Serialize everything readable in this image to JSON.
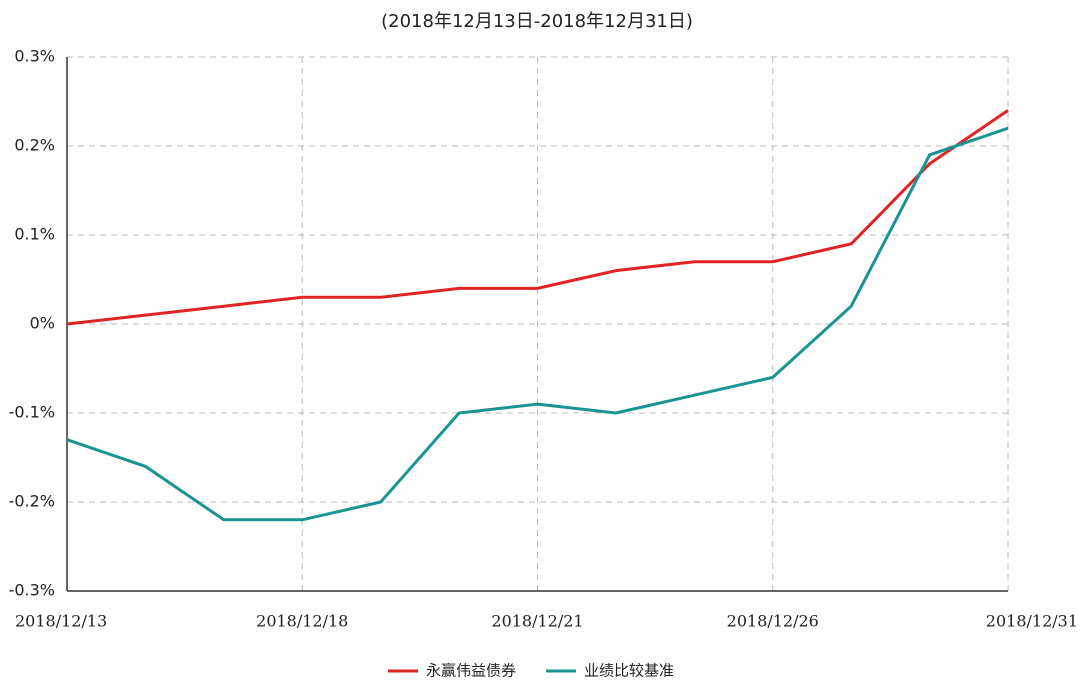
{
  "chart_data": {
    "type": "line",
    "title": "(2018年12月13日-2018年12月31日)",
    "categories": [
      "2018/12/13",
      null,
      null,
      "2018/12/18",
      null,
      null,
      "2018/12/21",
      null,
      null,
      "2018/12/26",
      null,
      null,
      "2018/12/31"
    ],
    "series": [
      {
        "name": "永赢伟益债券",
        "color": "#e02424",
        "values": [
          0,
          0.01,
          0.02,
          0.03,
          0.03,
          0.04,
          0.04,
          0.06,
          0.07,
          0.07,
          0.09,
          0.18,
          0.24
        ]
      },
      {
        "name": "业绩比较基准",
        "color": "#1a9393",
        "values": [
          -0.13,
          -0.16,
          -0.22,
          -0.22,
          -0.2,
          -0.1,
          -0.09,
          -0.1,
          -0.08,
          -0.06,
          0.02,
          0.19,
          0.22
        ]
      }
    ],
    "ylim": [
      -0.3,
      0.3
    ],
    "yticks": [
      {
        "value": -0.3,
        "label": "-0.3%"
      },
      {
        "value": -0.2,
        "label": "-0.2%"
      },
      {
        "value": -0.1,
        "label": "-0.1%"
      },
      {
        "value": 0,
        "label": "0%"
      },
      {
        "value": 0.1,
        "label": "0.1%"
      },
      {
        "value": 0.2,
        "label": "0.2%"
      },
      {
        "value": 0.3,
        "label": "0.3%"
      }
    ],
    "grid": true,
    "legend": "bottom"
  }
}
